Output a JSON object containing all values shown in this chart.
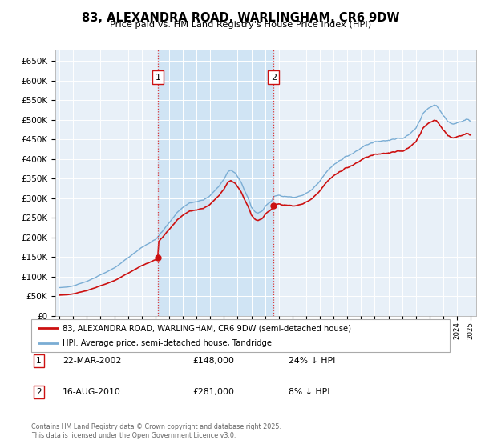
{
  "title": "83, ALEXANDRA ROAD, WARLINGHAM, CR6 9DW",
  "subtitle": "Price paid vs. HM Land Registry's House Price Index (HPI)",
  "ylim": [
    0,
    680000
  ],
  "yticks": [
    0,
    50000,
    100000,
    150000,
    200000,
    250000,
    300000,
    350000,
    400000,
    450000,
    500000,
    550000,
    600000,
    650000
  ],
  "ytick_labels": [
    "£0",
    "£50K",
    "£100K",
    "£150K",
    "£200K",
    "£250K",
    "£300K",
    "£350K",
    "£400K",
    "£450K",
    "£500K",
    "£550K",
    "£600K",
    "£650K"
  ],
  "background_color": "#E8F0F8",
  "shade_color": "#D0E4F4",
  "grid_color": "#FFFFFF",
  "hpi_color": "#7AADD4",
  "price_color": "#CC1111",
  "sale1_date": 2002.19,
  "sale1_price": 148000,
  "sale2_date": 2010.62,
  "sale2_price": 281000,
  "legend_property": "83, ALEXANDRA ROAD, WARLINGHAM, CR6 9DW (semi-detached house)",
  "legend_hpi": "HPI: Average price, semi-detached house, Tandridge",
  "table_rows": [
    {
      "num": "1",
      "date": "22-MAR-2002",
      "price": "£148,000",
      "pct": "24% ↓ HPI"
    },
    {
      "num": "2",
      "date": "16-AUG-2010",
      "price": "£281,000",
      "pct": "8% ↓ HPI"
    }
  ],
  "footer": "Contains HM Land Registry data © Crown copyright and database right 2025.\nThis data is licensed under the Open Government Licence v3.0."
}
